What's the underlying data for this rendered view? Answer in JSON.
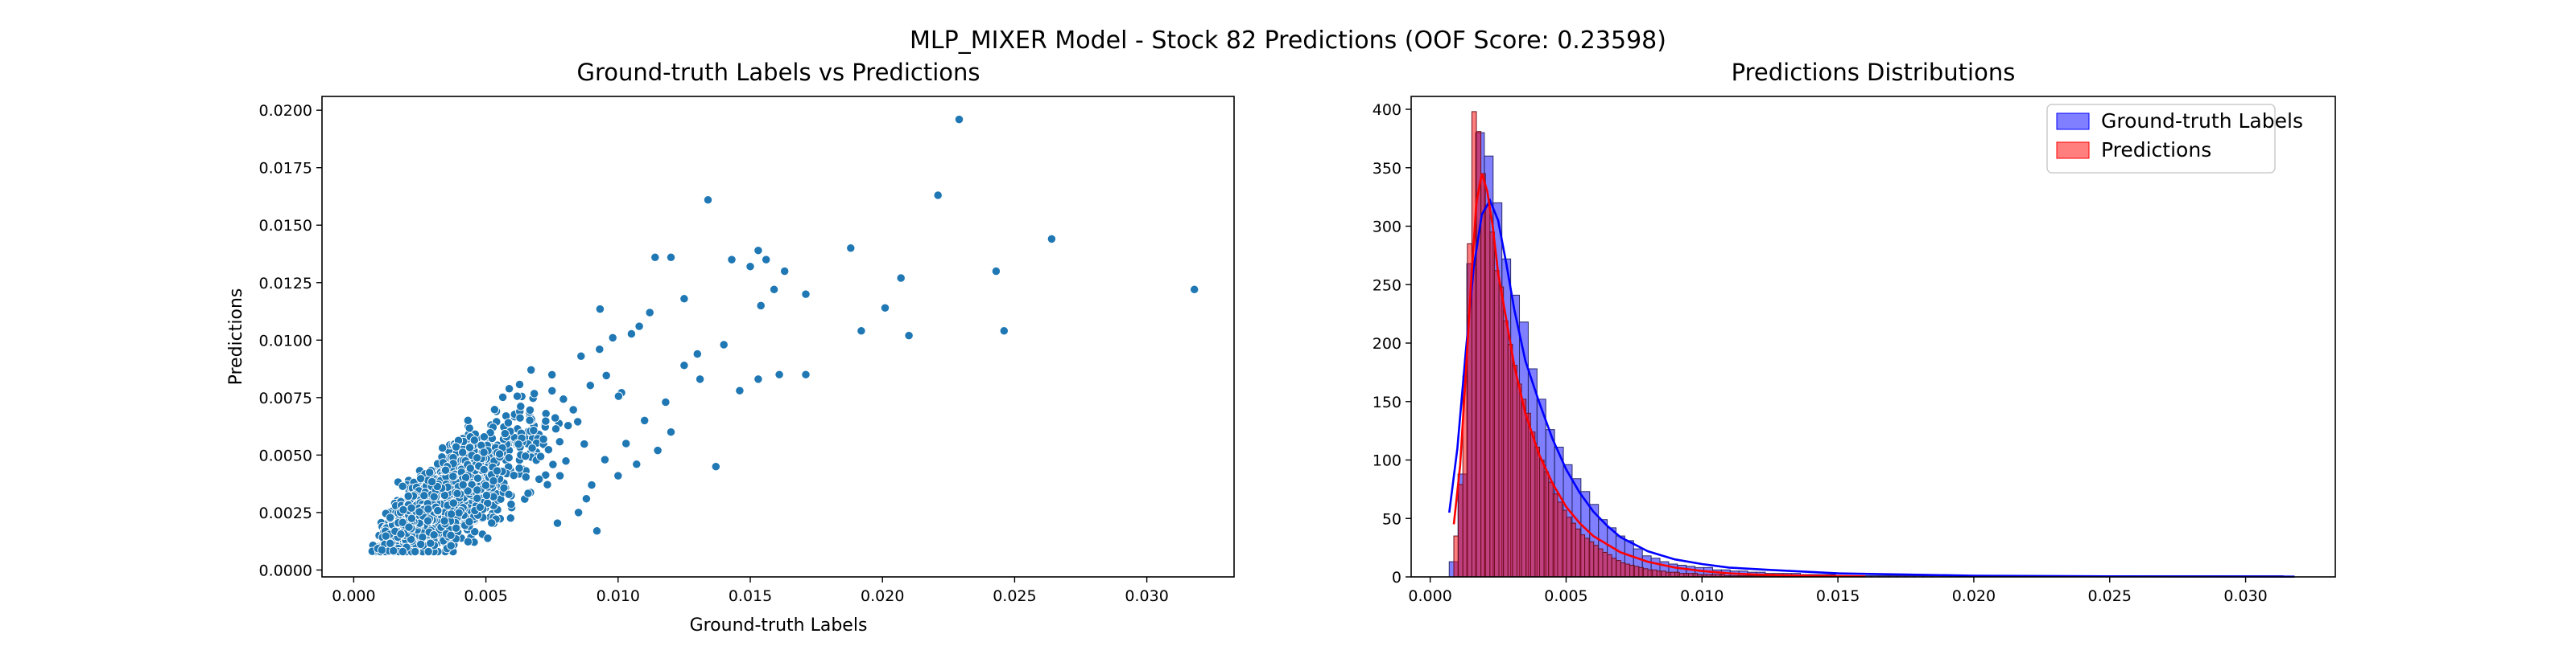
{
  "figure": {
    "suptitle": "MLP_MIXER Model - Stock 82 Predictions (OOF Score: 0.23598)"
  },
  "chart_data": [
    {
      "type": "scatter",
      "title": "Ground-truth Labels vs Predictions",
      "xlabel": "Ground-truth Labels",
      "ylabel": "Predictions",
      "xlim": [
        -0.0012,
        0.0333
      ],
      "ylim": [
        -0.0003,
        0.0206
      ],
      "xticks": [
        0.0,
        0.005,
        0.01,
        0.015,
        0.02,
        0.025,
        0.03
      ],
      "xtick_labels": [
        "0.000",
        "0.005",
        "0.010",
        "0.015",
        "0.020",
        "0.025",
        "0.030"
      ],
      "yticks": [
        0.0,
        0.0025,
        0.005,
        0.0075,
        0.01,
        0.0125,
        0.015,
        0.0175,
        0.02
      ],
      "ytick_labels": [
        "0.0000",
        "0.0025",
        "0.0050",
        "0.0075",
        "0.0100",
        "0.0125",
        "0.0150",
        "0.0175",
        "0.0200"
      ],
      "grid": false,
      "color": "#1f77b4",
      "points": [
        [
          0.0229,
          0.0196
        ],
        [
          0.0221,
          0.0163
        ],
        [
          0.0134,
          0.0161
        ],
        [
          0.0264,
          0.0144
        ],
        [
          0.0188,
          0.014
        ],
        [
          0.0153,
          0.0139
        ],
        [
          0.0143,
          0.0135
        ],
        [
          0.0114,
          0.0136
        ],
        [
          0.012,
          0.0136
        ],
        [
          0.0156,
          0.0135
        ],
        [
          0.015,
          0.0132
        ],
        [
          0.0163,
          0.013
        ],
        [
          0.0243,
          0.013
        ],
        [
          0.0207,
          0.0127
        ],
        [
          0.0318,
          0.0122
        ],
        [
          0.0159,
          0.0122
        ],
        [
          0.0171,
          0.012
        ],
        [
          0.0154,
          0.0115
        ],
        [
          0.0201,
          0.0114
        ],
        [
          0.0246,
          0.0104
        ],
        [
          0.0192,
          0.0104
        ],
        [
          0.021,
          0.0102
        ],
        [
          0.0171,
          0.0085
        ],
        [
          0.0161,
          0.0085
        ],
        [
          0.0153,
          0.0083
        ],
        [
          0.0146,
          0.0078
        ],
        [
          0.0137,
          0.0045
        ],
        [
          0.0092,
          0.0017
        ],
        [
          0.0085,
          0.0025
        ],
        [
          0.013,
          0.0094
        ],
        [
          0.0125,
          0.0089
        ],
        [
          0.014,
          0.0098
        ],
        [
          0.0131,
          0.0083
        ],
        [
          0.0118,
          0.0073
        ],
        [
          0.011,
          0.0065
        ],
        [
          0.012,
          0.006
        ],
        [
          0.0115,
          0.0052
        ],
        [
          0.0103,
          0.0055
        ],
        [
          0.0095,
          0.0048
        ],
        [
          0.0107,
          0.0046
        ],
        [
          0.01,
          0.0041
        ],
        [
          0.009,
          0.0037
        ],
        [
          0.0088,
          0.0031
        ],
        [
          0.0078,
          0.0041
        ],
        [
          0.0112,
          0.0112
        ],
        [
          0.0108,
          0.0106
        ],
        [
          0.0125,
          0.0118
        ],
        [
          0.0098,
          0.0101
        ],
        [
          0.0093,
          0.0096
        ],
        [
          0.0086,
          0.0093
        ]
      ],
      "cloud": {
        "n": 2000,
        "x_median": 0.003,
        "x_log_sigma": 0.4,
        "x_range": [
          0.0007,
          0.013
        ],
        "slope": 0.74,
        "intercept": 0.0005,
        "noise_base": 0.0003,
        "noise_scale": 0.17,
        "y_min": 0.0008
      }
    },
    {
      "type": "histogram",
      "title": "Predictions Distributions",
      "xlabel": "",
      "ylabel": "",
      "xlim": [
        -0.0007,
        0.0333
      ],
      "ylim": [
        0,
        411
      ],
      "xticks": [
        0.0,
        0.005,
        0.01,
        0.015,
        0.02,
        0.025,
        0.03
      ],
      "xtick_labels": [
        "0.000",
        "0.005",
        "0.010",
        "0.015",
        "0.020",
        "0.025",
        "0.030"
      ],
      "yticks": [
        0,
        50,
        100,
        150,
        200,
        250,
        300,
        350,
        400
      ],
      "ytick_labels": [
        "0",
        "50",
        "100",
        "150",
        "200",
        "250",
        "300",
        "350",
        "400"
      ],
      "grid": false,
      "legend_position": "top-right",
      "series": [
        {
          "name": "Ground-truth Labels",
          "color": "#0000ff",
          "fill_opacity": 0.5,
          "bin_start": 0.0007,
          "bin_width": 0.000323,
          "counts": [
            13,
            88,
            268,
            380,
            360,
            320,
            272,
            241,
            218,
            178,
            152,
            126,
            111,
            96,
            84,
            73,
            62,
            49,
            42,
            35,
            31,
            24,
            18,
            16,
            13,
            11,
            10,
            9,
            8,
            8,
            6,
            6,
            5,
            5,
            4,
            4,
            3,
            3,
            3,
            3,
            2,
            2,
            2,
            2,
            1,
            1,
            1,
            1,
            1,
            1,
            1,
            1,
            1,
            1,
            1,
            1,
            1,
            1,
            1,
            1,
            1,
            1,
            1,
            1,
            1,
            1,
            1,
            1,
            1,
            1,
            1,
            1,
            1,
            1,
            1,
            1,
            1,
            1,
            1,
            1,
            1,
            1,
            1,
            1,
            1,
            1,
            1,
            1,
            1,
            1,
            1,
            1,
            1,
            1,
            1
          ],
          "kde": {
            "x": [
              0.0007,
              0.001,
              0.0013,
              0.0016,
              0.0019,
              0.0022,
              0.0025,
              0.0028,
              0.0031,
              0.0035,
              0.004,
              0.0045,
              0.005,
              0.0055,
              0.006,
              0.0065,
              0.007,
              0.008,
              0.009,
              0.01,
              0.011,
              0.0125,
              0.015,
              0.0175,
              0.02,
              0.025,
              0.0318
            ],
            "y": [
              55,
              110,
              190,
              265,
              310,
              322,
              305,
              268,
              228,
              185,
              150,
              118,
              92,
              72,
              56,
              44,
              34,
              22,
              15,
              11,
              8,
              6,
              3,
              2,
              1,
              0.5,
              0.2
            ]
          }
        },
        {
          "name": "Predictions",
          "color": "#ff0000",
          "fill_opacity": 0.5,
          "bin_start": 0.00087,
          "bin_width": 0.000166,
          "counts": [
            35,
            79,
            172,
            285,
            398,
            381,
            345,
            318,
            295,
            262,
            248,
            219,
            199,
            181,
            165,
            152,
            140,
            124,
            111,
            100,
            90,
            81,
            71,
            64,
            57,
            51,
            46,
            41,
            36,
            33,
            30,
            27,
            24,
            21,
            19,
            16,
            14,
            12,
            11,
            10,
            9,
            8,
            7,
            6,
            6,
            5,
            5,
            4,
            4,
            4,
            3,
            3,
            3,
            3,
            2,
            2,
            2,
            2,
            2,
            2,
            1,
            1,
            1,
            1,
            1,
            1,
            1,
            1,
            1,
            1,
            1,
            1,
            1,
            1,
            1,
            1
          ],
          "kde": {
            "x": [
              0.00087,
              0.0011,
              0.0013,
              0.0015,
              0.0017,
              0.0019,
              0.0021,
              0.0023,
              0.0025,
              0.0028,
              0.0031,
              0.0035,
              0.004,
              0.0045,
              0.005,
              0.0055,
              0.006,
              0.007,
              0.008,
              0.009,
              0.01,
              0.011,
              0.012,
              0.014,
              0.016
            ],
            "y": [
              45,
              95,
              170,
              250,
              320,
              345,
              330,
              300,
              260,
              220,
              180,
              140,
              105,
              80,
              60,
              46,
              35,
              21,
              13,
              8,
              5,
              3,
              2,
              1,
              0.5
            ]
          }
        }
      ]
    }
  ]
}
